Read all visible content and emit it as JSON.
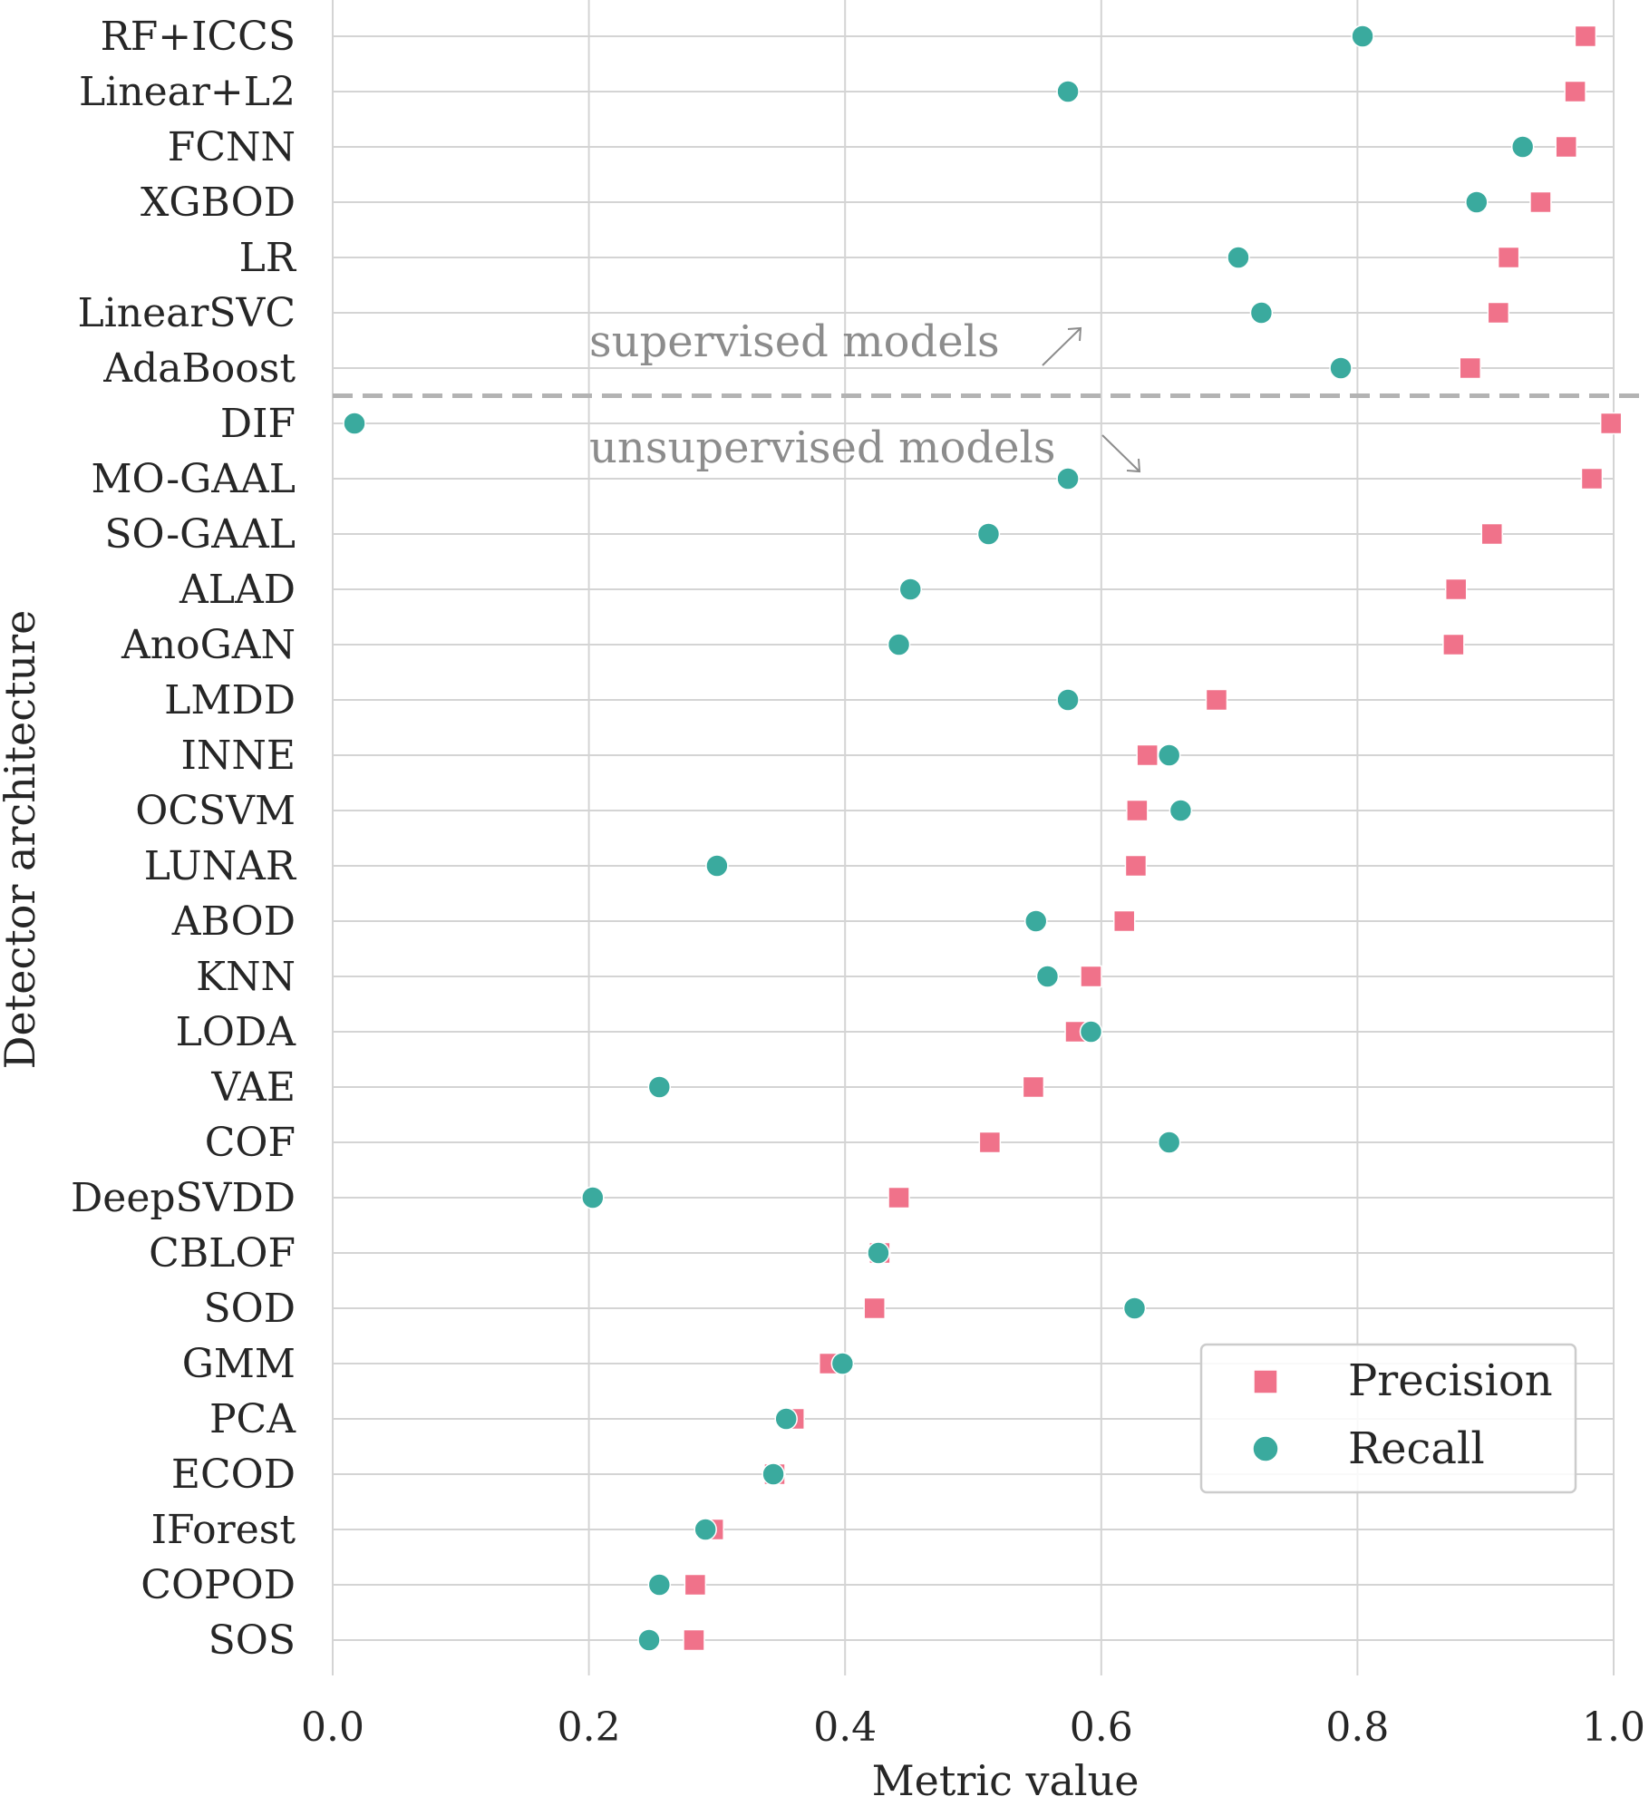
{
  "chart_data": {
    "type": "scatter",
    "orientation": "horizontal-categories",
    "xlabel": "Metric value",
    "ylabel": "Detector architecture",
    "xlim": [
      0.0,
      1.0
    ],
    "xticks": [
      "0.0",
      "0.2",
      "0.4",
      "0.6",
      "0.8",
      "1.0"
    ],
    "grid": true,
    "legend_position": "lower-right",
    "categories": [
      "RF+ICCS",
      "Linear+L2",
      "FCNN",
      "XGBOD",
      "LR",
      "LinearSVC",
      "AdaBoost",
      "DIF",
      "MO-GAAL",
      "SO-GAAL",
      "ALAD",
      "AnoGAN",
      "LMDD",
      "INNE",
      "OCSVM",
      "LUNAR",
      "ABOD",
      "KNN",
      "LODA",
      "VAE",
      "COF",
      "DeepSVDD",
      "CBLOF",
      "SOD",
      "GMM",
      "PCA",
      "ECOD",
      "IForest",
      "COPOD",
      "SOS"
    ],
    "series": [
      {
        "name": "Precision",
        "marker": "square",
        "color": "#f0728a",
        "values": [
          0.978,
          0.97,
          0.963,
          0.943,
          0.918,
          0.91,
          0.888,
          0.998,
          0.983,
          0.905,
          0.877,
          0.875,
          0.69,
          0.636,
          0.628,
          0.627,
          0.618,
          0.592,
          0.58,
          0.547,
          0.513,
          0.442,
          0.427,
          0.423,
          0.388,
          0.36,
          0.345,
          0.297,
          0.283,
          0.282
        ]
      },
      {
        "name": "Recall",
        "marker": "circle",
        "color": "#3aaa9e",
        "values": [
          0.804,
          0.574,
          0.929,
          0.893,
          0.707,
          0.725,
          0.787,
          0.017,
          0.574,
          0.512,
          0.451,
          0.442,
          0.574,
          0.653,
          0.662,
          0.3,
          0.549,
          0.558,
          0.592,
          0.255,
          0.653,
          0.203,
          0.426,
          0.626,
          0.398,
          0.354,
          0.344,
          0.291,
          0.255,
          0.247
        ]
      }
    ],
    "annotations": [
      {
        "text": "supervised models",
        "arrow": "up-right"
      },
      {
        "text": "unsupervised models",
        "arrow": "down-right"
      }
    ],
    "separator_between": [
      "AdaBoost",
      "DIF"
    ]
  }
}
